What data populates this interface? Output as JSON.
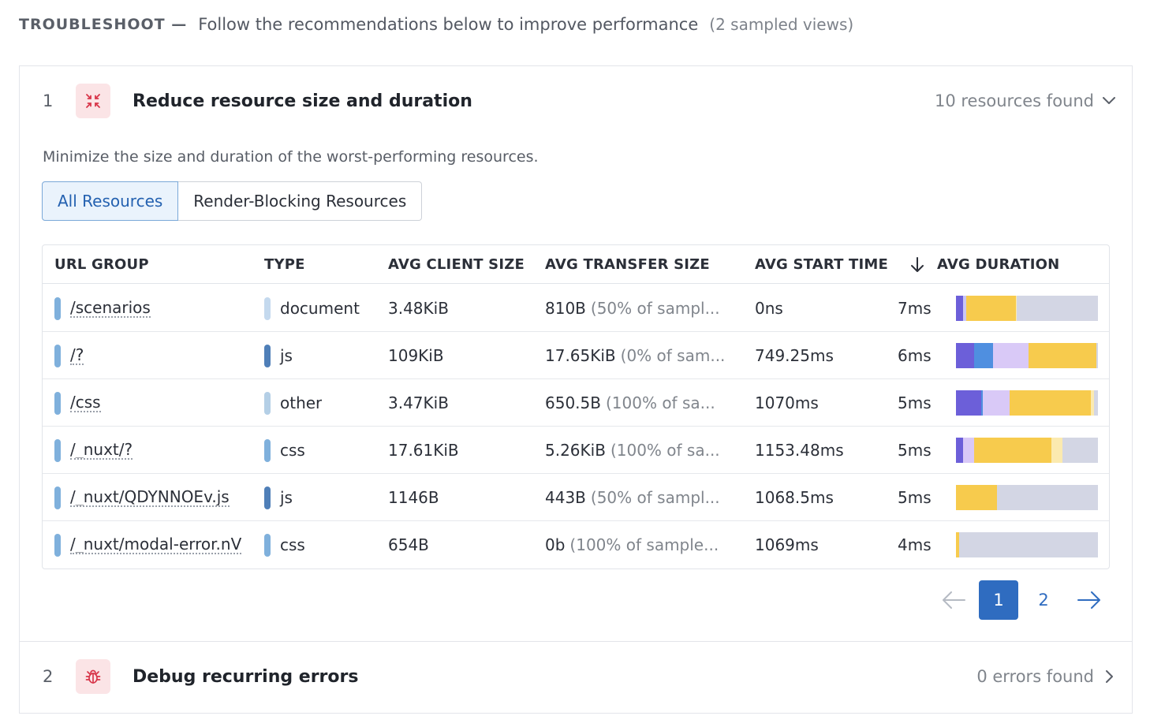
{
  "header": {
    "title": "TROUBLESHOOT —",
    "description": "Follow the recommendations below to improve performance",
    "sampled": "(2 sampled views)"
  },
  "sections": [
    {
      "number": "1",
      "icon": "compress-arrows-icon",
      "title": "Reduce resource size and duration",
      "found": "10 resources found",
      "expanded": true,
      "description": "Minimize the size and duration of the worst-performing resources."
    },
    {
      "number": "2",
      "icon": "bug-icon",
      "title": "Debug recurring errors",
      "found": "0 errors found",
      "expanded": false
    }
  ],
  "tabs": [
    {
      "label": "All Resources",
      "active": true
    },
    {
      "label": "Render-Blocking Resources",
      "active": false
    }
  ],
  "table": {
    "columns": [
      "URL GROUP",
      "TYPE",
      "AVG CLIENT SIZE",
      "AVG TRANSFER SIZE",
      "AVG START TIME",
      "AVG DURATION"
    ],
    "sort": {
      "column": "AVG DURATION",
      "direction": "descending"
    },
    "rows": [
      {
        "url": "/scenarios",
        "type": "document",
        "type_color": "#c4d9ee",
        "client_size": "3.48KiB",
        "transfer_size": "810B",
        "transfer_note": "(50% of sampl...",
        "start_time": "0ns",
        "duration": "7ms",
        "segments": [
          {
            "color": "#6c5fd9",
            "share": 5
          },
          {
            "color": "#c9c6f5",
            "share": 2
          },
          {
            "color": "#f7cb4d",
            "share": 35
          },
          {
            "color": "#fbeab0",
            "share": 1
          },
          {
            "color": "#d3d6e4",
            "share": 57
          }
        ]
      },
      {
        "url": "/?",
        "type": "js",
        "type_color": "#4f7fb8",
        "client_size": "109KiB",
        "transfer_size": "17.65KiB",
        "transfer_note": "(0% of sam...",
        "start_time": "749.25ms",
        "duration": "6ms",
        "segments": [
          {
            "color": "#6c5fd9",
            "share": 13
          },
          {
            "color": "#4f8fe0",
            "share": 13
          },
          {
            "color": "#d9c9f7",
            "share": 25
          },
          {
            "color": "#f7cb4d",
            "share": 48
          },
          {
            "color": "#d3d6e4",
            "share": 1
          }
        ]
      },
      {
        "url": "/css",
        "type": "other",
        "type_color": "#b4cfe6",
        "client_size": "3.47KiB",
        "transfer_size": "650.5B",
        "transfer_note": "(100% of sa...",
        "start_time": "1070ms",
        "duration": "5ms",
        "segments": [
          {
            "color": "#6c5fd9",
            "share": 18
          },
          {
            "color": "#4f8fe0",
            "share": 1
          },
          {
            "color": "#d9c9f7",
            "share": 19
          },
          {
            "color": "#f7cb4d",
            "share": 57
          },
          {
            "color": "#fbeab0",
            "share": 2
          },
          {
            "color": "#d3d6e4",
            "share": 3
          }
        ]
      },
      {
        "url": "/_nuxt/?",
        "type": "css",
        "type_color": "#7fb0dc",
        "client_size": "17.61KiB",
        "transfer_size": "5.26KiB",
        "transfer_note": "(100% of sa...",
        "start_time": "1153.48ms",
        "duration": "5ms",
        "segments": [
          {
            "color": "#6c5fd9",
            "share": 5
          },
          {
            "color": "#d9c9f7",
            "share": 8
          },
          {
            "color": "#f7cb4d",
            "share": 54
          },
          {
            "color": "#fbeab0",
            "share": 8
          },
          {
            "color": "#d3d6e4",
            "share": 25
          }
        ]
      },
      {
        "url": "/_nuxt/QDYNNOEv.js",
        "type": "js",
        "type_color": "#4f7fb8",
        "client_size": "1146B",
        "transfer_size": "443B",
        "transfer_note": "(50% of sampl...",
        "start_time": "1068.5ms",
        "duration": "5ms",
        "segments": [
          {
            "color": "#f7cb4d",
            "share": 29
          },
          {
            "color": "#d3d6e4",
            "share": 71
          }
        ]
      },
      {
        "url": "/_nuxt/modal-error.nV",
        "type": "css",
        "type_color": "#7fb0dc",
        "client_size": "654B",
        "transfer_size": "0b",
        "transfer_note": "(100% of sample...",
        "start_time": "1069ms",
        "duration": "4ms",
        "segments": [
          {
            "color": "#f7cb4d",
            "share": 2
          },
          {
            "color": "#d3d6e4",
            "share": 98
          }
        ]
      }
    ]
  },
  "pagination": {
    "prev_icon": "arrow-left-icon",
    "pages": [
      "1",
      "2"
    ],
    "current": "1",
    "next_icon": "arrow-right-icon"
  },
  "colors": {
    "accent": "#2f6cc0",
    "url_pill": "#7fb0dc",
    "icon_bg": "#fbe4e6",
    "icon_fg": "#d8364a"
  }
}
